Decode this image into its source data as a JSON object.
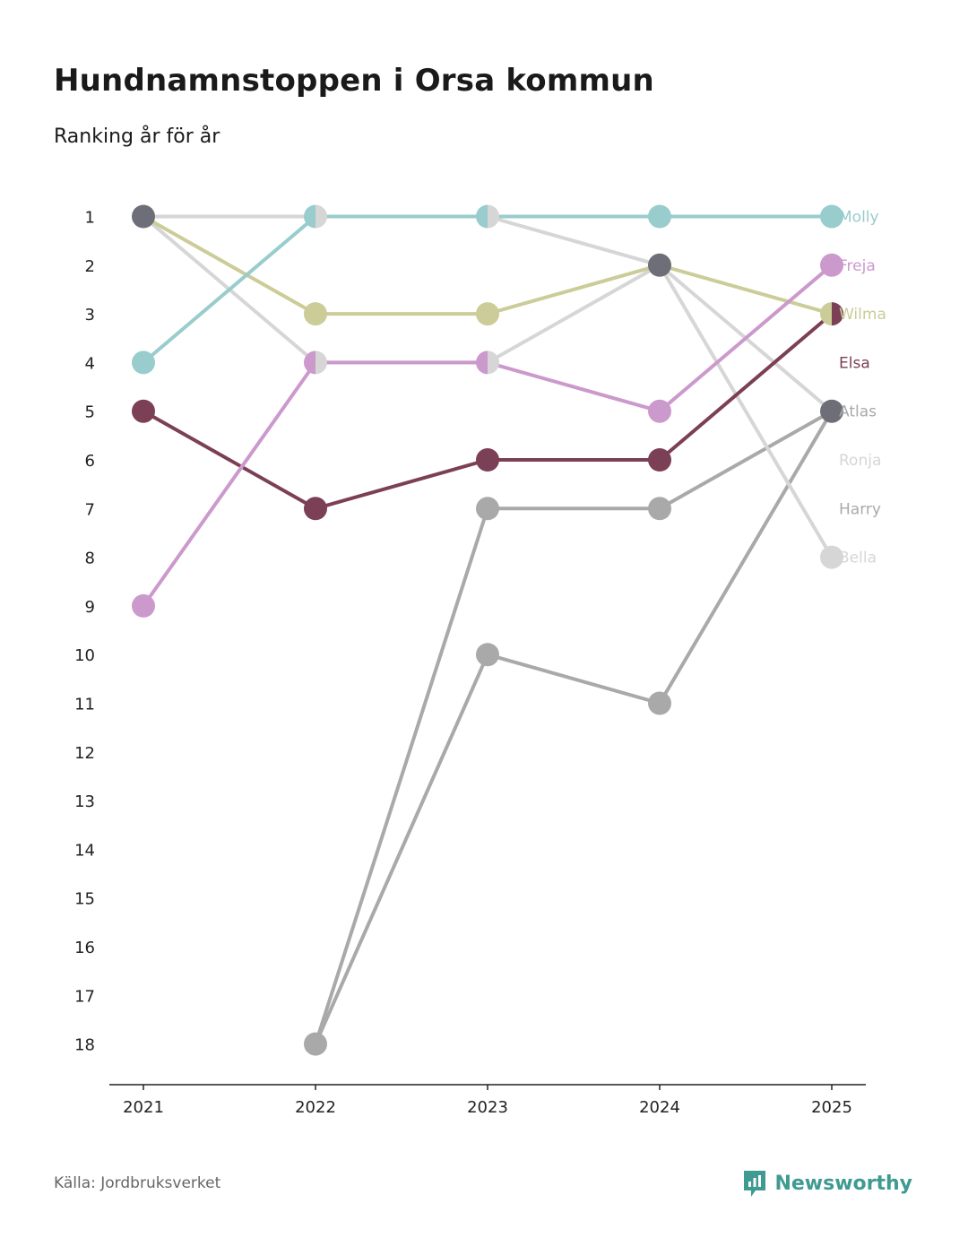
{
  "title": "Hundnamnstoppen i Orsa kommun",
  "subtitle": "Ranking år för år",
  "source": "Källa: Jordbruksverket",
  "brand": {
    "name": "Newsworthy",
    "icon": "newsworthy-logo-icon",
    "color": "#3f9a91"
  },
  "chart_data": {
    "type": "line",
    "title": "Hundnamnstoppen i Orsa kommun",
    "subtitle": "Ranking år för år",
    "xlabel": "",
    "ylabel": "",
    "x": [
      "2021",
      "2022",
      "2023",
      "2024",
      "2025"
    ],
    "y_ticks": [
      "1",
      "2",
      "3",
      "4",
      "5",
      "6",
      "7",
      "8",
      "9",
      "10",
      "11",
      "12",
      "13",
      "14",
      "15",
      "16",
      "17",
      "18"
    ],
    "ylim": [
      1,
      18
    ],
    "y_inverted": true,
    "grid": false,
    "series": [
      {
        "name": "Harry",
        "color": "#a9a9a9",
        "values": [
          null,
          18,
          10,
          11,
          5
        ]
      },
      {
        "name": "Atlas",
        "color": "#a9a9a9",
        "values": [
          null,
          18,
          7,
          7,
          5
        ]
      },
      {
        "name": "Ronja",
        "color": "#d6d6d6",
        "values": [
          1,
          4,
          4,
          2,
          5
        ]
      },
      {
        "name": "Bella",
        "color": "#d6d6d6",
        "values": [
          1,
          1,
          1,
          2,
          8
        ]
      },
      {
        "name": "Elsa",
        "color": "#7b3f56",
        "values": [
          5,
          7,
          6,
          6,
          3
        ]
      },
      {
        "name": "Wilma",
        "color": "#cccc99",
        "values": [
          1,
          3,
          3,
          2,
          3
        ]
      },
      {
        "name": "Freja",
        "color": "#cc99cc",
        "values": [
          9,
          4,
          4,
          5,
          2
        ]
      },
      {
        "name": "Molly",
        "color": "#99cccc",
        "values": [
          4,
          1,
          1,
          1,
          1
        ]
      }
    ],
    "end_labels": [
      {
        "name": "Molly",
        "rank": 1
      },
      {
        "name": "Freja",
        "rank": 2
      },
      {
        "name": "Wilma",
        "rank": 3
      },
      {
        "name": "Elsa",
        "rank": 4
      },
      {
        "name": "Atlas",
        "rank": 5
      },
      {
        "name": "Ronja",
        "rank": 6
      },
      {
        "name": "Harry",
        "rank": 7
      },
      {
        "name": "Bella",
        "rank": 8
      }
    ],
    "tie_colors": {
      "triple_or_more": "#6e6e78"
    }
  }
}
